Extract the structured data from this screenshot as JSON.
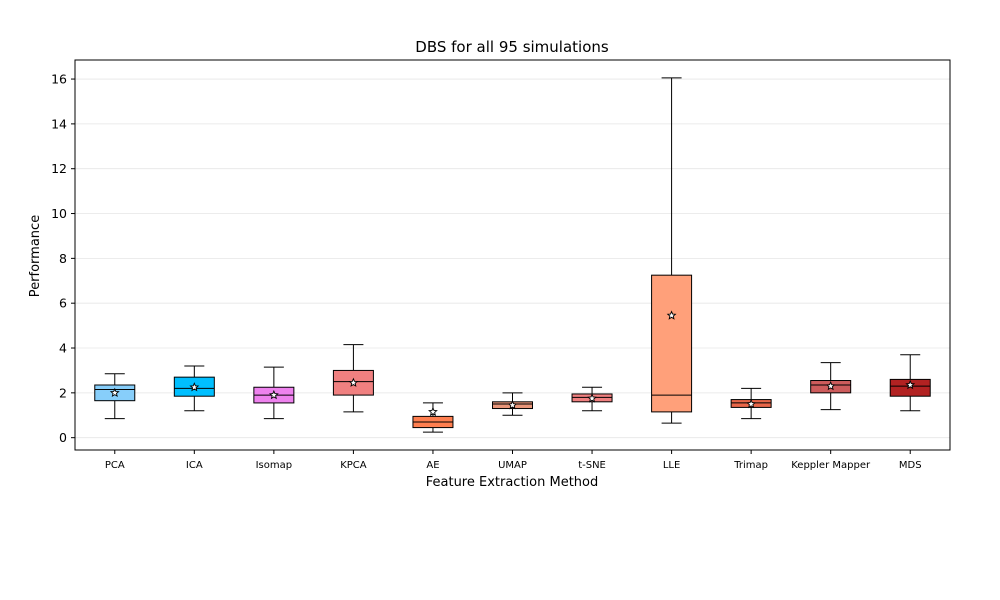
{
  "chart_data": {
    "type": "box",
    "title": "DBS for all 95 simulations",
    "xlabel": "Feature Extraction Method",
    "ylabel": "Performance",
    "ylim": [
      -0.55,
      16.85
    ],
    "yticks": [
      0,
      2,
      4,
      6,
      8,
      10,
      12,
      14,
      16
    ],
    "grid": "horizontal",
    "categories": [
      "PCA",
      "ICA",
      "Isomap",
      "KPCA",
      "AE",
      "UMAP",
      "t-SNE",
      "LLE",
      "Trimap",
      "Keppler Mapper",
      "MDS"
    ],
    "colors": [
      "#87CEFA",
      "#00BFFF",
      "#EE82EE",
      "#F08080",
      "#FF7F50",
      "#E9967A",
      "#F08080",
      "#FFA07A",
      "#E9674A",
      "#CD5C5C",
      "#B22222"
    ],
    "boxes": [
      {
        "whisker_low": 0.85,
        "q1": 1.65,
        "median": 2.15,
        "q3": 2.35,
        "whisker_high": 2.85,
        "mean": 2.0
      },
      {
        "whisker_low": 1.2,
        "q1": 1.85,
        "median": 2.2,
        "q3": 2.7,
        "whisker_high": 3.2,
        "mean": 2.25
      },
      {
        "whisker_low": 0.85,
        "q1": 1.55,
        "median": 1.9,
        "q3": 2.25,
        "whisker_high": 3.15,
        "mean": 1.9
      },
      {
        "whisker_low": 1.15,
        "q1": 1.9,
        "median": 2.5,
        "q3": 3.0,
        "whisker_high": 4.15,
        "mean": 2.45
      },
      {
        "whisker_low": 0.25,
        "q1": 0.45,
        "median": 0.7,
        "q3": 0.95,
        "whisker_high": 1.55,
        "mean": 1.15
      },
      {
        "whisker_low": 1.0,
        "q1": 1.3,
        "median": 1.5,
        "q3": 1.6,
        "whisker_high": 2.0,
        "mean": 1.45
      },
      {
        "whisker_low": 1.2,
        "q1": 1.6,
        "median": 1.8,
        "q3": 1.95,
        "whisker_high": 2.25,
        "mean": 1.75
      },
      {
        "whisker_low": 0.65,
        "q1": 1.15,
        "median": 1.9,
        "q3": 7.25,
        "whisker_high": 16.05,
        "mean": 5.45
      },
      {
        "whisker_low": 0.85,
        "q1": 1.35,
        "median": 1.55,
        "q3": 1.7,
        "whisker_high": 2.2,
        "mean": 1.5
      },
      {
        "whisker_low": 1.25,
        "q1": 2.0,
        "median": 2.35,
        "q3": 2.55,
        "whisker_high": 3.35,
        "mean": 2.3
      },
      {
        "whisker_low": 1.2,
        "q1": 1.85,
        "median": 2.3,
        "q3": 2.6,
        "whisker_high": 3.7,
        "mean": 2.35
      }
    ]
  }
}
